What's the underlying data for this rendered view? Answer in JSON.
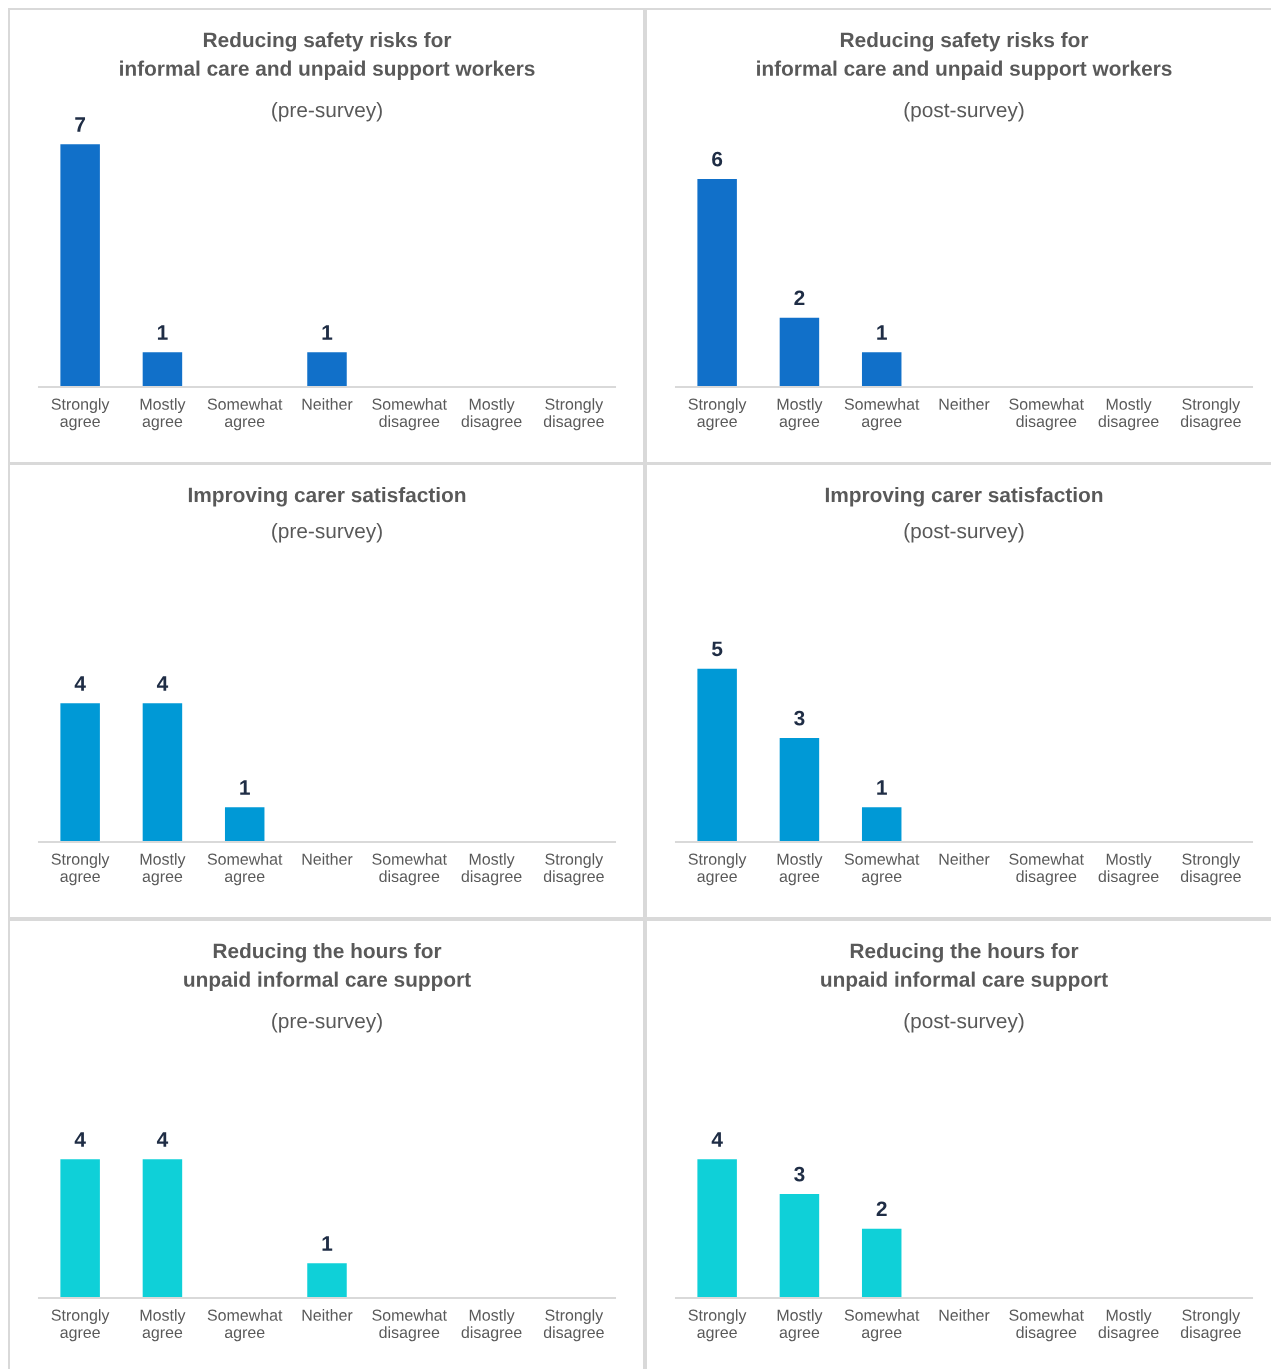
{
  "chart_data": [
    {
      "type": "bar",
      "title": "Reducing safety risks for\ninformal care and unpaid support workers",
      "subtitle": "(pre-survey)",
      "categories": [
        "Strongly\nagree",
        "Mostly\nagree",
        "Somewhat\nagree",
        "Neither",
        "Somewhat\ndisagree",
        "Mostly\ndisagree",
        "Strongly\ndisagree"
      ],
      "values": [
        7,
        1,
        0,
        1,
        0,
        0,
        0
      ],
      "value_labels": [
        "7",
        "1",
        null,
        "1",
        null,
        null,
        null
      ],
      "color": "#1170c9"
    },
    {
      "type": "bar",
      "title": "Reducing safety risks for\ninformal care and unpaid support workers",
      "subtitle": "(post-survey)",
      "categories": [
        "Strongly\nagree",
        "Mostly\nagree",
        "Somewhat\nagree",
        "Neither",
        "Somewhat\ndisagree",
        "Mostly\ndisagree",
        "Strongly\ndisagree"
      ],
      "values": [
        6,
        2,
        1,
        0,
        0,
        0,
        0
      ],
      "value_labels": [
        "6",
        "2",
        "1",
        null,
        null,
        null,
        null
      ],
      "color": "#1170c9"
    },
    {
      "type": "bar",
      "title": "Improving carer satisfaction",
      "subtitle": "(pre-survey)",
      "categories": [
        "Strongly\nagree",
        "Mostly\nagree",
        "Somewhat\nagree",
        "Neither",
        "Somewhat\ndisagree",
        "Mostly\ndisagree",
        "Strongly\ndisagree"
      ],
      "values": [
        4,
        4,
        1,
        0,
        0,
        0,
        0
      ],
      "value_labels": [
        "4",
        "4",
        "1",
        null,
        null,
        null,
        null
      ],
      "color": "#0099d6"
    },
    {
      "type": "bar",
      "title": "Improving carer satisfaction",
      "subtitle": "(post-survey)",
      "categories": [
        "Strongly\nagree",
        "Mostly\nagree",
        "Somewhat\nagree",
        "Neither",
        "Somewhat\ndisagree",
        "Mostly\ndisagree",
        "Strongly\ndisagree"
      ],
      "values": [
        5,
        3,
        1,
        0,
        0,
        0,
        0
      ],
      "value_labels": [
        "5",
        "3",
        "1",
        null,
        null,
        null,
        null
      ],
      "color": "#0099d6"
    },
    {
      "type": "bar",
      "title": "Reducing the hours for\nunpaid informal care support",
      "subtitle": "(pre-survey)",
      "categories": [
        "Strongly\nagree",
        "Mostly\nagree",
        "Somewhat\nagree",
        "Neither",
        "Somewhat\ndisagree",
        "Mostly\ndisagree",
        "Strongly\ndisagree"
      ],
      "values": [
        4,
        4,
        0,
        1,
        0,
        0,
        0
      ],
      "value_labels": [
        "4",
        "4",
        null,
        "1",
        null,
        null,
        null
      ],
      "color": "#0fd0d8"
    },
    {
      "type": "bar",
      "title": "Reducing the hours for\nunpaid informal care support",
      "subtitle": "(post-survey)",
      "categories": [
        "Strongly\nagree",
        "Mostly\nagree",
        "Somewhat\nagree",
        "Neither",
        "Somewhat\ndisagree",
        "Mostly\ndisagree",
        "Strongly\ndisagree"
      ],
      "values": [
        4,
        3,
        2,
        0,
        0,
        0,
        0
      ],
      "value_labels": [
        "4",
        "3",
        "2",
        null,
        null,
        null,
        null
      ],
      "color": "#0fd0d8"
    }
  ]
}
